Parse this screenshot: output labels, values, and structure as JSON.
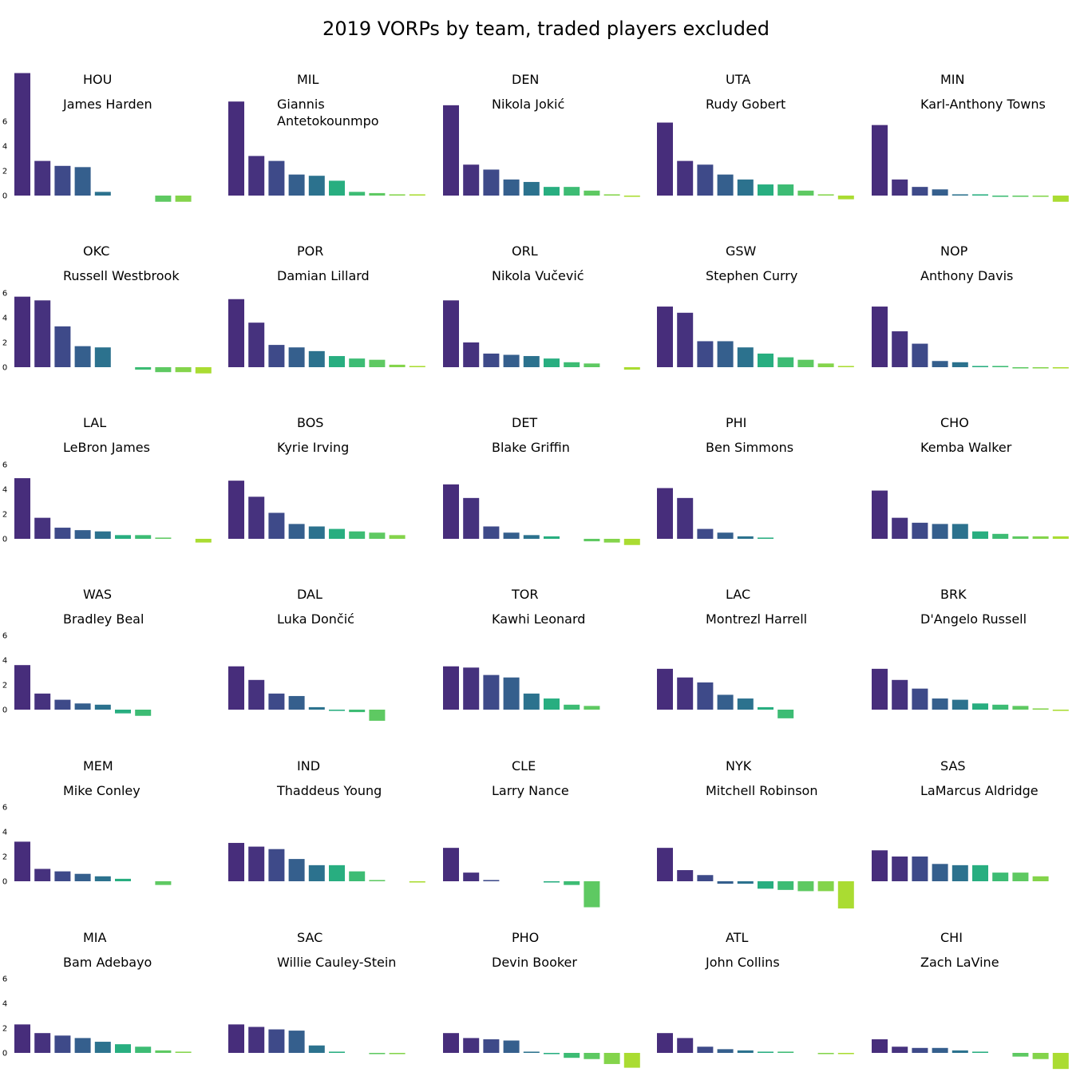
{
  "title": "2019 VORPs by team, traded players excluded",
  "chart_data": {
    "type": "bar",
    "title": "2019 VORPs by team, traded players excluded",
    "layout": "grid-6x5",
    "ylim": [
      -1.2,
      10.0
    ],
    "y_ticks": [
      0,
      2,
      4,
      6
    ],
    "grid": false,
    "palette": [
      "#472d7b",
      "#46327e",
      "#3e4a89",
      "#355f8d",
      "#2c728e",
      "#21908d",
      "#28ae80",
      "#3dbc74",
      "#5ec962",
      "#84d44b",
      "#aadc32"
    ],
    "panels": [
      {
        "team": "HOU",
        "top_player": "James Harden",
        "values": [
          9.9,
          2.8,
          2.4,
          2.3,
          0.3,
          0.0,
          0.0,
          -0.5,
          -0.5
        ]
      },
      {
        "team": "MIL",
        "top_player": "Giannis\nAntetokounmpo",
        "values": [
          7.6,
          3.2,
          2.8,
          1.7,
          1.6,
          1.2,
          0.3,
          0.2,
          0.1,
          0.1
        ]
      },
      {
        "team": "DEN",
        "top_player": "Nikola Jokić",
        "values": [
          7.3,
          2.5,
          2.1,
          1.3,
          1.1,
          0.7,
          0.7,
          0.4,
          0.1,
          -0.1
        ]
      },
      {
        "team": "UTA",
        "top_player": "Rudy Gobert",
        "values": [
          5.9,
          2.8,
          2.5,
          1.7,
          1.3,
          0.9,
          0.9,
          0.4,
          0.1,
          -0.3
        ]
      },
      {
        "team": "MIN",
        "top_player": "Karl-Anthony Towns",
        "values": [
          5.7,
          1.3,
          0.7,
          0.5,
          0.1,
          0.1,
          -0.1,
          -0.1,
          -0.1,
          -0.5
        ]
      },
      {
        "team": "OKC",
        "top_player": "Russell Westbrook",
        "values": [
          5.7,
          5.4,
          3.3,
          1.7,
          1.6,
          0.0,
          -0.2,
          -0.4,
          -0.4,
          -0.5
        ]
      },
      {
        "team": "POR",
        "top_player": "Damian Lillard",
        "values": [
          5.5,
          3.6,
          1.8,
          1.6,
          1.3,
          0.9,
          0.7,
          0.6,
          0.2,
          0.1
        ]
      },
      {
        "team": "ORL",
        "top_player": "Nikola Vučević",
        "values": [
          5.4,
          2.0,
          1.1,
          1.0,
          0.9,
          0.7,
          0.4,
          0.3,
          0.0,
          -0.2
        ]
      },
      {
        "team": "GSW",
        "top_player": "Stephen Curry",
        "values": [
          4.9,
          4.4,
          2.1,
          2.1,
          1.6,
          1.1,
          0.8,
          0.6,
          0.3,
          0.1
        ]
      },
      {
        "team": "NOP",
        "top_player": "Anthony Davis",
        "values": [
          4.9,
          2.9,
          1.9,
          0.5,
          0.4,
          0.1,
          0.1,
          -0.1,
          -0.1,
          -0.1
        ]
      },
      {
        "team": "LAL",
        "top_player": "LeBron James",
        "values": [
          4.9,
          1.7,
          0.9,
          0.7,
          0.6,
          0.3,
          0.3,
          0.1,
          0.0,
          -0.3
        ]
      },
      {
        "team": "BOS",
        "top_player": "Kyrie Irving",
        "values": [
          4.7,
          3.4,
          2.1,
          1.2,
          1.0,
          0.8,
          0.6,
          0.5,
          0.3
        ]
      },
      {
        "team": "DET",
        "top_player": "Blake Griffin",
        "values": [
          4.4,
          3.3,
          1.0,
          0.5,
          0.3,
          0.2,
          0.0,
          -0.2,
          -0.3,
          -0.5
        ]
      },
      {
        "team": "PHI",
        "top_player": "Ben Simmons",
        "values": [
          4.1,
          3.3,
          0.8,
          0.5,
          0.2,
          0.1
        ]
      },
      {
        "team": "CHO",
        "top_player": "Kemba Walker",
        "values": [
          3.9,
          1.7,
          1.3,
          1.2,
          1.2,
          0.6,
          0.4,
          0.2,
          0.2,
          0.2
        ]
      },
      {
        "team": "WAS",
        "top_player": "Bradley Beal",
        "values": [
          3.6,
          1.3,
          0.8,
          0.5,
          0.4,
          -0.3,
          -0.5
        ]
      },
      {
        "team": "DAL",
        "top_player": "Luka Dončić",
        "values": [
          3.5,
          2.4,
          1.3,
          1.1,
          0.2,
          -0.1,
          -0.2,
          -0.9
        ]
      },
      {
        "team": "TOR",
        "top_player": "Kawhi Leonard",
        "values": [
          3.5,
          3.4,
          2.8,
          2.6,
          1.3,
          0.9,
          0.4,
          0.3
        ]
      },
      {
        "team": "LAC",
        "top_player": "Montrezl Harrell",
        "values": [
          3.3,
          2.6,
          2.2,
          1.2,
          0.9,
          0.2,
          -0.7
        ]
      },
      {
        "team": "BRK",
        "top_player": "D'Angelo Russell",
        "values": [
          3.3,
          2.4,
          1.7,
          0.9,
          0.8,
          0.5,
          0.4,
          0.3,
          0.1,
          -0.1
        ]
      },
      {
        "team": "MEM",
        "top_player": "Mike Conley",
        "values": [
          3.2,
          1.0,
          0.8,
          0.6,
          0.4,
          0.2,
          0.0,
          -0.3
        ]
      },
      {
        "team": "IND",
        "top_player": "Thaddeus Young",
        "values": [
          3.1,
          2.8,
          2.6,
          1.8,
          1.3,
          1.3,
          0.8,
          0.1,
          0.0,
          -0.1
        ]
      },
      {
        "team": "CLE",
        "top_player": "Larry Nance",
        "values": [
          2.7,
          0.7,
          0.1,
          0.0,
          0.0,
          -0.1,
          -0.3,
          -2.1
        ]
      },
      {
        "team": "NYK",
        "top_player": "Mitchell Robinson",
        "values": [
          2.7,
          0.9,
          0.5,
          -0.2,
          -0.2,
          -0.6,
          -0.7,
          -0.8,
          -0.8,
          -2.2
        ]
      },
      {
        "team": "SAS",
        "top_player": "LaMarcus Aldridge",
        "values": [
          2.5,
          2.0,
          2.0,
          1.4,
          1.3,
          1.3,
          0.7,
          0.7,
          0.4
        ]
      },
      {
        "team": "MIA",
        "top_player": "Bam Adebayo",
        "values": [
          2.3,
          1.6,
          1.4,
          1.2,
          0.9,
          0.7,
          0.5,
          0.2,
          0.1
        ]
      },
      {
        "team": "SAC",
        "top_player": "Willie Cauley-Stein",
        "values": [
          2.3,
          2.1,
          1.9,
          1.8,
          0.6,
          0.1,
          0.0,
          -0.1,
          -0.1
        ]
      },
      {
        "team": "PHO",
        "top_player": "Devin Booker",
        "values": [
          1.6,
          1.2,
          1.1,
          1.0,
          0.1,
          -0.1,
          -0.4,
          -0.5,
          -0.9,
          -1.2
        ]
      },
      {
        "team": "ATL",
        "top_player": "John Collins",
        "values": [
          1.6,
          1.2,
          0.5,
          0.3,
          0.2,
          0.1,
          0.1,
          0.0,
          -0.1,
          -0.1
        ]
      },
      {
        "team": "CHI",
        "top_player": "Zach LaVine",
        "values": [
          1.1,
          0.5,
          0.4,
          0.4,
          0.2,
          0.1,
          0.0,
          -0.3,
          -0.5,
          -1.3
        ]
      }
    ]
  }
}
